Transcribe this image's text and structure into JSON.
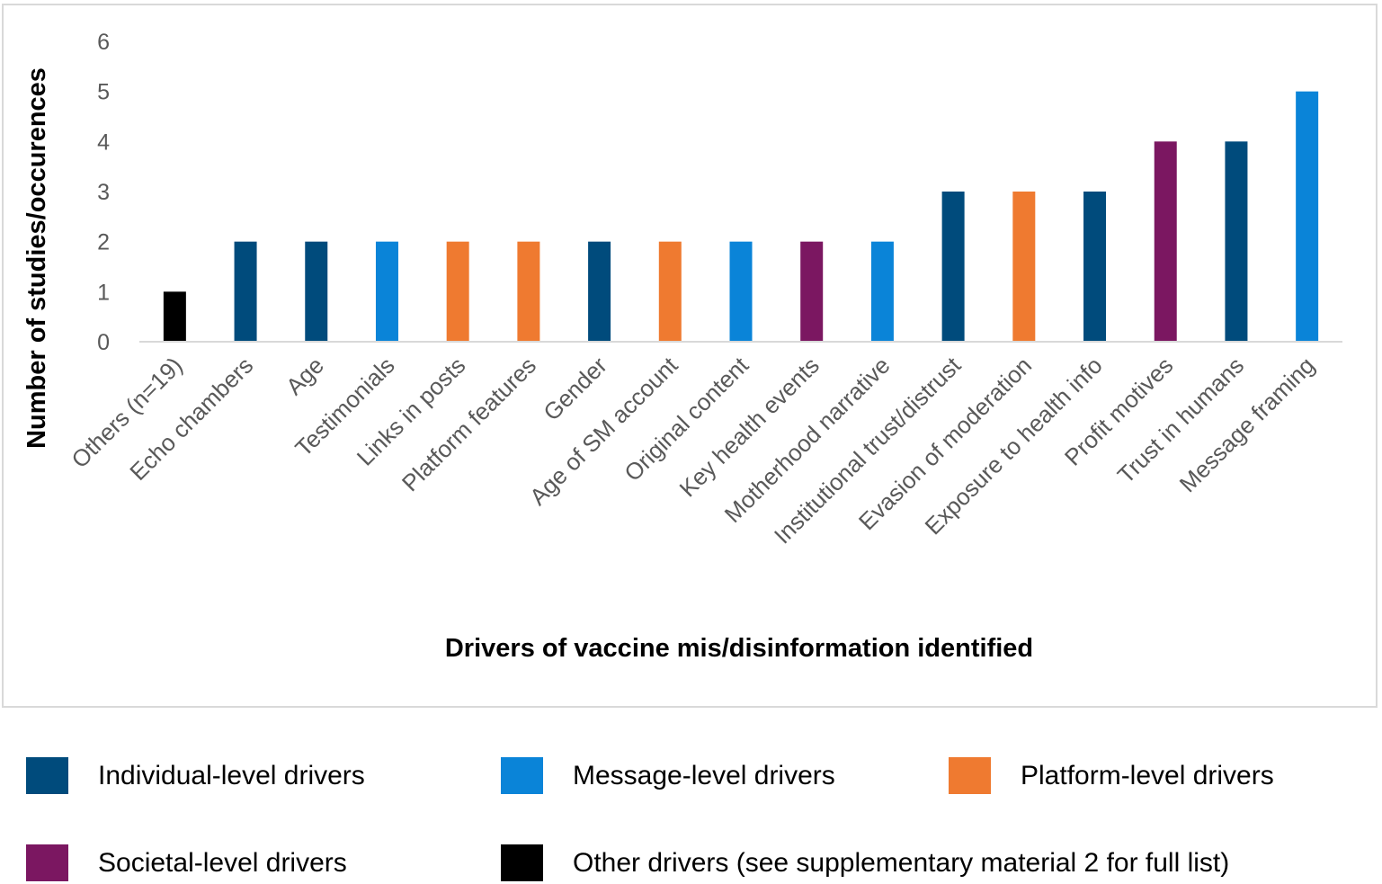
{
  "chart_data": {
    "type": "bar",
    "title": "",
    "xlabel": "Drivers of vaccine mis/disinformation identified",
    "ylabel": "Number of studies/occurences",
    "ylim": [
      0,
      6
    ],
    "yticks": [
      "0",
      "1",
      "2",
      "3",
      "4",
      "5",
      "6"
    ],
    "grid": false,
    "categories": [
      "Others (n=19)",
      "Echo chambers",
      "Age",
      "Testimonials",
      "Links in posts",
      "Platform features",
      "Gender",
      "Age of SM account",
      "Original content",
      "Key health events",
      "Motherhood narrative",
      "Institutional trust/distrust",
      "Evasion of moderation",
      "Exposure to health info",
      "Profit motives",
      "Trust in humans",
      "Message framing"
    ],
    "values": [
      1,
      2,
      2,
      2,
      2,
      2,
      2,
      2,
      2,
      2,
      2,
      3,
      3,
      3,
      4,
      4,
      5
    ],
    "groups": [
      "other",
      "individual",
      "individual",
      "message",
      "platform",
      "platform",
      "individual",
      "platform",
      "message",
      "societal",
      "message",
      "individual",
      "platform",
      "individual",
      "societal",
      "individual",
      "message"
    ]
  },
  "colors": {
    "individual": "#004b7c",
    "message": "#0a84d8",
    "platform": "#ef7a30",
    "societal": "#7b1761",
    "other": "#000000",
    "axis": "#d9d9d9"
  },
  "legend": [
    {
      "key": "individual",
      "label": "Individual-level drivers"
    },
    {
      "key": "message",
      "label": "Message-level drivers"
    },
    {
      "key": "platform",
      "label": "Platform-level drivers"
    },
    {
      "key": "societal",
      "label": "Societal-level drivers"
    },
    {
      "key": "other",
      "label": "Other drivers (see supplementary material 2 for full list)"
    }
  ]
}
